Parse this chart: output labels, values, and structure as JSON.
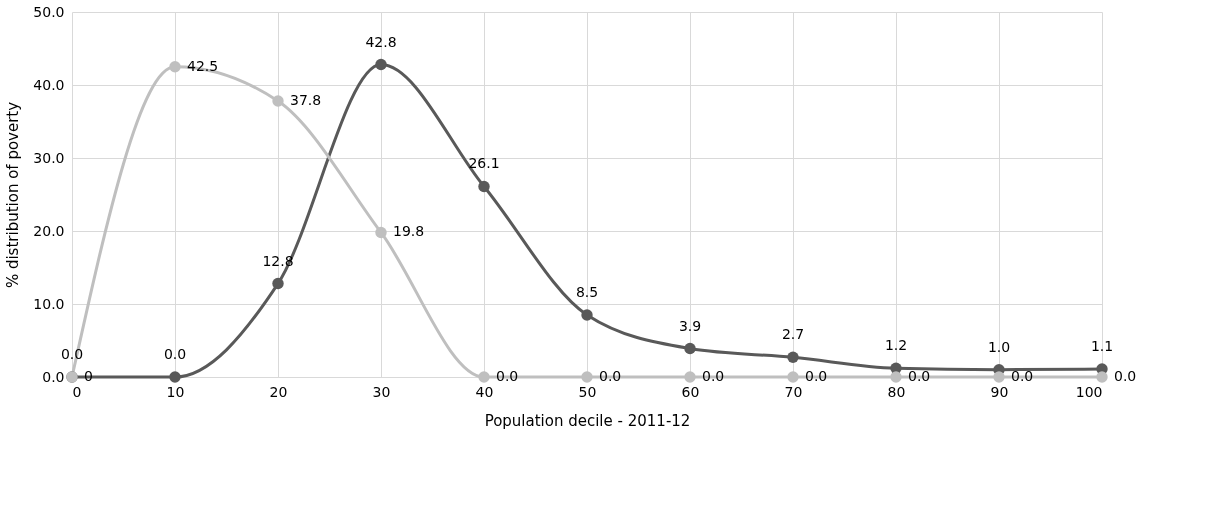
{
  "chart_data": {
    "type": "line",
    "xlabel": "Population decile - 2011-12",
    "ylabel": "% distribution of poverty",
    "x": [
      0,
      10,
      20,
      30,
      40,
      50,
      60,
      70,
      80,
      90,
      100
    ],
    "xlim": [
      0,
      100
    ],
    "xticks": [
      0,
      10,
      20,
      30,
      40,
      50,
      60,
      70,
      80,
      90,
      100
    ],
    "ylim": [
      0,
      50
    ],
    "yticks": [
      {
        "value": 0,
        "label": "0.0"
      },
      {
        "value": 10,
        "label": "10.0"
      },
      {
        "value": 20,
        "label": "20.0"
      },
      {
        "value": 30,
        "label": "30.0"
      },
      {
        "value": 40,
        "label": "40.0"
      },
      {
        "value": 50,
        "label": "50.0"
      }
    ],
    "grid": true,
    "marker": "circle",
    "line_style": "solid",
    "series": [
      {
        "color": "#595959",
        "values": [
          0,
          0,
          12.8,
          42.8,
          26.1,
          8.5,
          3.9,
          2.7,
          1.2,
          1.0,
          1.1
        ],
        "value_labels": [
          "0.0",
          "0.0",
          "12.8",
          "42.8",
          "26.1",
          "8.5",
          "3.9",
          "2.7",
          "1.2",
          "1.0",
          "1.1"
        ]
      },
      {
        "color": "#bfbfbf",
        "values": [
          0,
          42.5,
          37.8,
          19.8,
          0,
          0,
          0,
          0,
          0,
          0,
          0
        ],
        "value_labels": [
          "0",
          "42.5",
          "37.8",
          "19.8",
          "0.0",
          "0.0",
          "0.0",
          "0.0",
          "0.0",
          "0.0",
          "0.0"
        ]
      }
    ]
  }
}
